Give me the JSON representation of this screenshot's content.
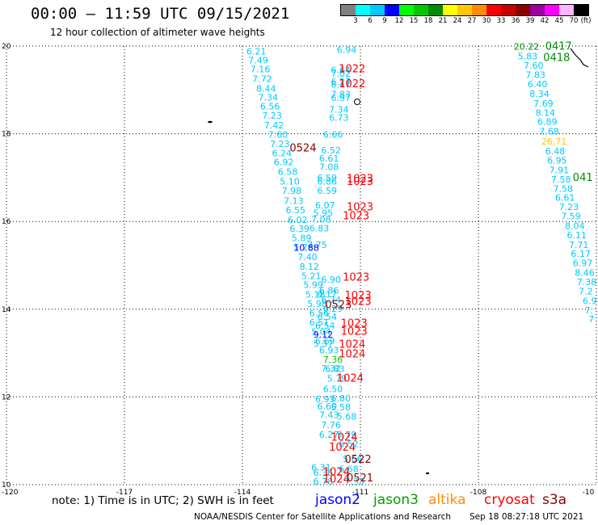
{
  "header": {
    "title": "00:00 – 11:59 UTC 09/15/2021",
    "subtitle": "12 hour collection of altimeter wave heights"
  },
  "scale": {
    "unit": "(ft)",
    "colors": [
      "#808080",
      "#00ffff",
      "#00c8ff",
      "#0000ff",
      "#00ff00",
      "#00c800",
      "#008c00",
      "#ffff00",
      "#ffc800",
      "#ff8c00",
      "#ff0000",
      "#c80000",
      "#8c0000",
      "#a000a0",
      "#ff00ff",
      "#ffb4ff",
      "#000000"
    ],
    "labels": [
      {
        "text": "3",
        "i": 1
      },
      {
        "text": "6",
        "i": 2
      },
      {
        "text": "9",
        "i": 3
      },
      {
        "text": "12",
        "i": 4
      },
      {
        "text": "15",
        "i": 5
      },
      {
        "text": "18",
        "i": 6
      },
      {
        "text": "21",
        "i": 7
      },
      {
        "text": "24",
        "i": 8
      },
      {
        "text": "27",
        "i": 9
      },
      {
        "text": "30",
        "i": 10
      },
      {
        "text": "33",
        "i": 11
      },
      {
        "text": "36",
        "i": 12
      },
      {
        "text": "39",
        "i": 13
      },
      {
        "text": "42",
        "i": 14
      },
      {
        "text": "45",
        "i": 15
      },
      {
        "text": "70",
        "i": 16
      }
    ]
  },
  "map": {
    "lon_range": [
      -120,
      -105
    ],
    "lat_range": [
      10,
      20
    ],
    "lat_ticks": [
      {
        "v": 10,
        "t": "10"
      },
      {
        "v": 12,
        "t": "12"
      },
      {
        "v": 14,
        "t": "14"
      },
      {
        "v": 16,
        "t": "16"
      },
      {
        "v": 18,
        "t": "18"
      },
      {
        "v": 20,
        "t": "20"
      }
    ],
    "lon_ticks": [
      {
        "v": -120,
        "t": "-120"
      },
      {
        "v": -117,
        "t": "-117"
      },
      {
        "v": -114,
        "t": "-114"
      },
      {
        "v": -111,
        "t": "-111"
      },
      {
        "v": -108,
        "t": "-108"
      },
      {
        "v": -105,
        "t": "-10"
      }
    ],
    "points": [
      {
        "lon": -113.9,
        "lat": 19.81,
        "v": "6.21",
        "c": "#00c8ff"
      },
      {
        "lon": -113.85,
        "lat": 19.6,
        "v": "7.49",
        "c": "#00c8ff"
      },
      {
        "lon": -113.8,
        "lat": 19.4,
        "v": "7.16",
        "c": "#00c8ff"
      },
      {
        "lon": -113.75,
        "lat": 19.18,
        "v": "7.72",
        "c": "#00c8ff"
      },
      {
        "lon": -113.65,
        "lat": 18.96,
        "v": "8.44",
        "c": "#00c8ff"
      },
      {
        "lon": -113.6,
        "lat": 18.76,
        "v": "7.34",
        "c": "#00c8ff"
      },
      {
        "lon": -113.55,
        "lat": 18.55,
        "v": "6.56",
        "c": "#00c8ff"
      },
      {
        "lon": -113.5,
        "lat": 18.34,
        "v": "7.23",
        "c": "#00c8ff"
      },
      {
        "lon": -113.45,
        "lat": 18.12,
        "v": "7.42",
        "c": "#00c8ff"
      },
      {
        "lon": -113.35,
        "lat": 17.91,
        "v": "7.60",
        "c": "#00c8ff"
      },
      {
        "lon": -113.3,
        "lat": 17.7,
        "v": "7.23",
        "c": "#00c8ff"
      },
      {
        "lon": -113.25,
        "lat": 17.49,
        "v": "6.24",
        "c": "#00c8ff"
      },
      {
        "lon": -113.2,
        "lat": 17.28,
        "v": "6.92",
        "c": "#00c8ff"
      },
      {
        "lon": -113.1,
        "lat": 17.06,
        "v": "6.58",
        "c": "#00c8ff"
      },
      {
        "lon": -113.05,
        "lat": 16.84,
        "v": "5.10",
        "c": "#00c8ff"
      },
      {
        "lon": -113.0,
        "lat": 16.63,
        "v": "7.98",
        "c": "#00c8ff"
      },
      {
        "lon": -112.95,
        "lat": 16.4,
        "v": "7.13",
        "c": "#00c8ff"
      },
      {
        "lon": -112.9,
        "lat": 16.19,
        "v": "6.55",
        "c": "#00c8ff"
      },
      {
        "lon": -112.85,
        "lat": 15.97,
        "v": "6.02",
        "c": "#00c8ff"
      },
      {
        "lon": -112.8,
        "lat": 15.76,
        "v": "6.39",
        "c": "#00c8ff"
      },
      {
        "lon": -112.75,
        "lat": 15.55,
        "v": "5.89",
        "c": "#00c8ff"
      },
      {
        "lon": -112.7,
        "lat": 15.34,
        "v": "5.76",
        "c": "#00c8ff"
      },
      {
        "lon": -112.6,
        "lat": 15.12,
        "v": "7.40",
        "c": "#00c8ff"
      },
      {
        "lon": -112.55,
        "lat": 14.9,
        "v": "8.12",
        "c": "#00c8ff"
      },
      {
        "lon": -112.5,
        "lat": 14.69,
        "v": "5.21",
        "c": "#00c8ff"
      },
      {
        "lon": -112.45,
        "lat": 14.48,
        "v": "5.99",
        "c": "#00c8ff"
      },
      {
        "lon": -112.4,
        "lat": 14.26,
        "v": "5.18",
        "c": "#00c8ff"
      },
      {
        "lon": -112.35,
        "lat": 14.05,
        "v": "5.98",
        "c": "#00c8ff"
      },
      {
        "lon": -112.3,
        "lat": 13.84,
        "v": "6.56",
        "c": "#00c8ff"
      },
      {
        "lon": -112.3,
        "lat": 13.63,
        "v": "6.51",
        "c": "#00c8ff"
      },
      {
        "lon": -112.25,
        "lat": 13.42,
        "v": "5.04",
        "c": "#00c8ff"
      },
      {
        "lon": -112.15,
        "lat": 13.2,
        "v": "6.69",
        "c": "#00c8ff"
      },
      {
        "lon": -112.05,
        "lat": 12.99,
        "v": "6.93",
        "c": "#00c8ff"
      },
      {
        "lon": -111.95,
        "lat": 12.78,
        "v": "7.36",
        "c": "#00c800"
      },
      {
        "lon": -111.9,
        "lat": 12.57,
        "v": "6.83",
        "c": "#00c8ff"
      },
      {
        "lon": -111.85,
        "lat": 12.35,
        "v": "5.79",
        "c": "#00c8ff"
      },
      {
        "lon": -112.0,
        "lat": 14.14,
        "v": "6.74",
        "c": "#00c8ff"
      },
      {
        "lon": -111.95,
        "lat": 13.94,
        "v": "6.29",
        "c": "#00c8ff"
      },
      {
        "lon": -112.1,
        "lat": 13.76,
        "v": "6.54",
        "c": "#00c8ff"
      },
      {
        "lon": -112.15,
        "lat": 13.55,
        "v": "6.54",
        "c": "#00c8ff"
      },
      {
        "lon": -112.2,
        "lat": 13.35,
        "v": "9.12",
        "c": "#0000ff"
      },
      {
        "lon": -112.2,
        "lat": 13.14,
        "v": "5.37",
        "c": "#00c8ff"
      },
      {
        "lon": -112.0,
        "lat": 12.58,
        "v": "7.32",
        "c": "#00c8ff"
      },
      {
        "lon": -112.0,
        "lat": 14.6,
        "v": "6.90",
        "c": "#00c8ff"
      },
      {
        "lon": -112.05,
        "lat": 14.36,
        "v": "6.86",
        "c": "#00c8ff"
      },
      {
        "lon": -112.1,
        "lat": 14.27,
        "v": "6.17",
        "c": "#00c8ff"
      },
      {
        "lon": -111.95,
        "lat": 12.11,
        "v": "6.50",
        "c": "#00c8ff"
      },
      {
        "lon": -111.75,
        "lat": 11.9,
        "v": "6.80",
        "c": "#00c8ff"
      },
      {
        "lon": -112.1,
        "lat": 11.71,
        "v": "6.60",
        "c": "#00c8ff"
      },
      {
        "lon": -111.75,
        "lat": 11.69,
        "v": "5.58",
        "c": "#00c8ff"
      },
      {
        "lon": -112.05,
        "lat": 11.52,
        "v": "7.43",
        "c": "#00c8ff"
      },
      {
        "lon": -111.6,
        "lat": 11.48,
        "v": "5.68",
        "c": "#00c8ff"
      },
      {
        "lon": -112.15,
        "lat": 11.88,
        "v": "6.93",
        "c": "#00c8ff"
      },
      {
        "lon": -112.0,
        "lat": 11.29,
        "v": "7.76",
        "c": "#00c8ff"
      },
      {
        "lon": -112.05,
        "lat": 11.07,
        "v": "6.27",
        "c": "#00c8ff"
      },
      {
        "lon": -111.6,
        "lat": 11.07,
        "v": "5.79",
        "c": "#00c8ff"
      },
      {
        "lon": -111.55,
        "lat": 10.86,
        "v": "6.52",
        "c": "#00c8ff"
      },
      {
        "lon": -111.45,
        "lat": 10.52,
        "v": "5.66",
        "c": "#00c8ff"
      },
      {
        "lon": -112.25,
        "lat": 10.32,
        "v": "6.31",
        "c": "#00c8ff"
      },
      {
        "lon": -112.2,
        "lat": 10.2,
        "v": "6.36",
        "c": "#00c8ff"
      },
      {
        "lon": -112.2,
        "lat": 10.0,
        "v": "6.78",
        "c": "#00c8ff"
      },
      {
        "lon": -111.55,
        "lat": 10.29,
        "v": "6.68",
        "c": "#00c8ff"
      },
      {
        "lon": -111.4,
        "lat": 10.0,
        "v": "7.33",
        "c": "#00c8ff"
      },
      {
        "lon": -111.6,
        "lat": 19.84,
        "v": "6.94",
        "c": "#00c8ff"
      },
      {
        "lon": -111.75,
        "lat": 19.38,
        "v": "6.64",
        "c": "#00c8ff"
      },
      {
        "lon": -111.75,
        "lat": 19.3,
        "v": "7.02",
        "c": "#00c8ff"
      },
      {
        "lon": -111.75,
        "lat": 19.12,
        "v": "6.27",
        "c": "#00c8ff"
      },
      {
        "lon": -111.75,
        "lat": 19.05,
        "v": "6.47",
        "c": "#00c8ff"
      },
      {
        "lon": -111.75,
        "lat": 18.83,
        "v": "7.83",
        "c": "#00c8ff"
      },
      {
        "lon": -111.75,
        "lat": 18.75,
        "v": "6.97",
        "c": "#00c8ff"
      },
      {
        "lon": -111.8,
        "lat": 18.48,
        "v": "7.34",
        "c": "#00c8ff"
      },
      {
        "lon": -111.8,
        "lat": 18.3,
        "v": "6.73",
        "c": "#00c8ff"
      },
      {
        "lon": -111.95,
        "lat": 17.91,
        "v": "6.66",
        "c": "#00c8ff"
      },
      {
        "lon": -112.0,
        "lat": 17.55,
        "v": "6.52",
        "c": "#00c8ff"
      },
      {
        "lon": -112.05,
        "lat": 17.37,
        "v": "6.61",
        "c": "#00c8ff"
      },
      {
        "lon": -112.05,
        "lat": 17.17,
        "v": "7.08",
        "c": "#00c8ff"
      },
      {
        "lon": -112.1,
        "lat": 16.92,
        "v": "6.59",
        "c": "#00c8ff"
      },
      {
        "lon": -112.1,
        "lat": 16.84,
        "v": "6.86",
        "c": "#00c8ff"
      },
      {
        "lon": -112.1,
        "lat": 16.63,
        "v": "6.59",
        "c": "#00c8ff"
      },
      {
        "lon": -112.15,
        "lat": 16.3,
        "v": "6.07",
        "c": "#00c8ff"
      },
      {
        "lon": -112.2,
        "lat": 16.12,
        "v": "5.95",
        "c": "#00c8ff"
      },
      {
        "lon": -112.25,
        "lat": 15.98,
        "v": "7.08",
        "c": "#00c8ff"
      },
      {
        "lon": -112.3,
        "lat": 15.77,
        "v": "6.83",
        "c": "#00c8ff"
      },
      {
        "lon": -112.35,
        "lat": 15.4,
        "v": "7.75",
        "c": "#00c8ff"
      },
      {
        "lon": -112.7,
        "lat": 15.33,
        "v": "10.88",
        "c": "#0000ff"
      },
      {
        "lon": -107.1,
        "lat": 19.92,
        "v": "20.22",
        "c": "#008c00"
      },
      {
        "lon": -107.0,
        "lat": 19.7,
        "v": "5.83",
        "c": "#00c8ff"
      },
      {
        "lon": -106.85,
        "lat": 19.48,
        "v": "7.60",
        "c": "#00c8ff"
      },
      {
        "lon": -106.8,
        "lat": 19.27,
        "v": "7.83",
        "c": "#00c8ff"
      },
      {
        "lon": -106.75,
        "lat": 19.06,
        "v": "6.40",
        "c": "#00c8ff"
      },
      {
        "lon": -106.7,
        "lat": 18.84,
        "v": "8.34",
        "c": "#00c8ff"
      },
      {
        "lon": -106.6,
        "lat": 18.62,
        "v": "7.69",
        "c": "#00c8ff"
      },
      {
        "lon": -106.55,
        "lat": 18.41,
        "v": "8.14",
        "c": "#00c8ff"
      },
      {
        "lon": -106.5,
        "lat": 18.2,
        "v": "6.89",
        "c": "#00c8ff"
      },
      {
        "lon": -106.45,
        "lat": 17.98,
        "v": "7.68",
        "c": "#00c8ff"
      },
      {
        "lon": -106.4,
        "lat": 17.75,
        "v": "26.71",
        "c": "#ffc800"
      },
      {
        "lon": -106.3,
        "lat": 17.53,
        "v": "6.48",
        "c": "#00c8ff"
      },
      {
        "lon": -106.25,
        "lat": 17.32,
        "v": "6.95",
        "c": "#00c8ff"
      },
      {
        "lon": -106.2,
        "lat": 17.1,
        "v": "7.91",
        "c": "#00c8ff"
      },
      {
        "lon": -106.15,
        "lat": 16.89,
        "v": "7.58",
        "c": "#00c8ff"
      },
      {
        "lon": -106.1,
        "lat": 16.68,
        "v": "7.58",
        "c": "#00c8ff"
      },
      {
        "lon": -106.05,
        "lat": 16.47,
        "v": "6.61",
        "c": "#00c8ff"
      },
      {
        "lon": -105.95,
        "lat": 16.26,
        "v": "7.23",
        "c": "#00c8ff"
      },
      {
        "lon": -105.9,
        "lat": 16.05,
        "v": "7.59",
        "c": "#00c8ff"
      },
      {
        "lon": -105.8,
        "lat": 15.83,
        "v": "8.04",
        "c": "#00c8ff"
      },
      {
        "lon": -105.75,
        "lat": 15.62,
        "v": "6.11",
        "c": "#00c8ff"
      },
      {
        "lon": -105.7,
        "lat": 15.4,
        "v": "7.71",
        "c": "#00c8ff"
      },
      {
        "lon": -105.65,
        "lat": 15.19,
        "v": "6.17",
        "c": "#00c8ff"
      },
      {
        "lon": -105.6,
        "lat": 14.98,
        "v": "6.97",
        "c": "#00c8ff"
      },
      {
        "lon": -105.55,
        "lat": 14.76,
        "v": "8.46",
        "c": "#00c8ff"
      },
      {
        "lon": -105.5,
        "lat": 14.55,
        "v": "7.38",
        "c": "#00c8ff"
      },
      {
        "lon": -105.45,
        "lat": 14.34,
        "v": "7.2",
        "c": "#00c8ff"
      },
      {
        "lon": -105.35,
        "lat": 14.12,
        "v": "6.9",
        "c": "#00c8ff"
      },
      {
        "lon": -105.3,
        "lat": 13.9,
        "v": "7.",
        "c": "#00c8ff"
      },
      {
        "lon": -105.2,
        "lat": 13.7,
        "v": "7",
        "c": "#00c8ff"
      }
    ],
    "passes": [
      {
        "lon": -111.55,
        "lat": 19.4,
        "t": "1022",
        "c": "#ff0000"
      },
      {
        "lon": -111.55,
        "lat": 19.06,
        "t": "1022",
        "c": "#ff0000"
      },
      {
        "lon": -112.8,
        "lat": 17.6,
        "t": "0524",
        "c": "#8c0000"
      },
      {
        "lon": -111.35,
        "lat": 16.9,
        "t": "1023",
        "c": "#ff0000"
      },
      {
        "lon": -111.35,
        "lat": 16.83,
        "t": "1023",
        "c": "#ff0000"
      },
      {
        "lon": -111.35,
        "lat": 16.25,
        "t": "1023",
        "c": "#ff0000"
      },
      {
        "lon": -111.45,
        "lat": 16.05,
        "t": "1023",
        "c": "#ff0000"
      },
      {
        "lon": -111.45,
        "lat": 14.65,
        "t": "1023",
        "c": "#ff0000"
      },
      {
        "lon": -111.4,
        "lat": 14.24,
        "t": "1023",
        "c": "#ff0000"
      },
      {
        "lon": -111.4,
        "lat": 14.1,
        "t": "1023",
        "c": "#ff0000"
      },
      {
        "lon": -111.9,
        "lat": 14.02,
        "t": "0523",
        "c": "#8c0000"
      },
      {
        "lon": -111.5,
        "lat": 13.6,
        "t": "1023",
        "c": "#ff0000"
      },
      {
        "lon": -111.5,
        "lat": 13.42,
        "t": "1023",
        "c": "#ff0000"
      },
      {
        "lon": -111.55,
        "lat": 13.12,
        "t": "1024",
        "c": "#ff0000"
      },
      {
        "lon": -111.55,
        "lat": 12.9,
        "t": "1024",
        "c": "#ff0000"
      },
      {
        "lon": -111.6,
        "lat": 12.35,
        "t": "1024",
        "c": "#ff0000"
      },
      {
        "lon": -111.75,
        "lat": 11.0,
        "t": "1024",
        "c": "#ff0000"
      },
      {
        "lon": -111.8,
        "lat": 10.77,
        "t": "1024",
        "c": "#ff0000"
      },
      {
        "lon": -111.4,
        "lat": 10.5,
        "t": "0522",
        "c": "#8c0000"
      },
      {
        "lon": -111.95,
        "lat": 10.21,
        "t": "1024",
        "c": "#ff0000"
      },
      {
        "lon": -111.95,
        "lat": 10.05,
        "t": "1024",
        "c": "#ff0000"
      },
      {
        "lon": -111.35,
        "lat": 10.07,
        "t": "0521",
        "c": "#8c0000"
      },
      {
        "lon": -106.3,
        "lat": 19.92,
        "t": "0417",
        "c": "#008c00"
      },
      {
        "lon": -106.35,
        "lat": 19.66,
        "t": "0418",
        "c": "#008c00"
      },
      {
        "lon": -105.6,
        "lat": 16.92,
        "t": "041",
        "c": "#008c00"
      }
    ]
  },
  "footer": {
    "note": "note: 1) Time is in UTC; 2) SWH is in feet",
    "satellites": [
      {
        "name": "jason2",
        "color": "#0000ff"
      },
      {
        "name": "jason3",
        "color": "#00a000"
      },
      {
        "name": "altika",
        "color": "#ff8c00"
      },
      {
        "name": "cryosat",
        "color": "#ff0000"
      },
      {
        "name": "s3a",
        "color": "#8c0000"
      }
    ],
    "credit": "NOAA/NESDIS Center for Satellite Applications and Research",
    "updated": "Sep 18 08:27:18 UTC 2021"
  }
}
